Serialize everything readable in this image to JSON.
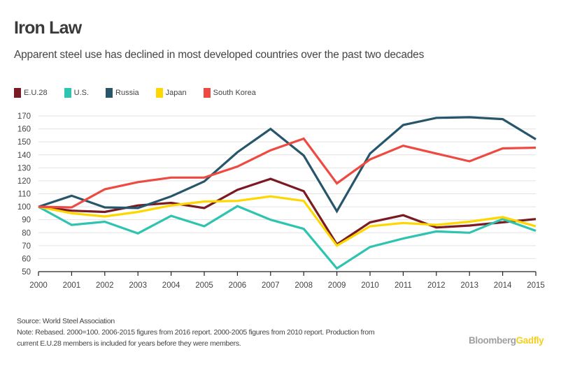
{
  "title": "Iron Law",
  "subtitle": "Apparent steel use has declined in most developed countries over the past two decades",
  "footer": {
    "source": "Source: World Steel Association",
    "note_line1": "Note: Rebased. 2000=100. 2006-2015 figures from 2016 report. 2000-2005 figures from 2010 report. Production from",
    "note_line2": "current E.U.28 members is included for years before they were members."
  },
  "brand": {
    "part1": "Bloomberg",
    "part2": "Gadfly"
  },
  "chart_data": {
    "type": "line",
    "title": "Iron Law",
    "subtitle": "Apparent steel use has declined in most developed countries over the past two decades",
    "xlabel": "",
    "ylabel": "",
    "x": [
      2000,
      2001,
      2002,
      2003,
      2004,
      2005,
      2006,
      2007,
      2008,
      2009,
      2010,
      2011,
      2012,
      2013,
      2014,
      2015
    ],
    "ylim": [
      50,
      170
    ],
    "yticks": [
      50,
      60,
      70,
      80,
      90,
      100,
      110,
      120,
      130,
      140,
      150,
      160,
      170
    ],
    "grid": true,
    "legend_position": "top-left",
    "series": [
      {
        "name": "E.U.28",
        "color": "#7a1a22",
        "values": [
          100,
          97,
          96,
          101,
          103,
          99,
          113,
          121.5,
          112,
          71,
          88,
          93.5,
          84,
          85.5,
          88,
          90.5
        ]
      },
      {
        "name": "U.S.",
        "color": "#2ec4b0",
        "values": [
          100,
          86,
          88.5,
          79.5,
          93,
          85,
          100.5,
          90,
          83,
          52.5,
          69,
          75.5,
          81,
          80,
          90.5,
          81.5
        ]
      },
      {
        "name": "Russia",
        "color": "#27566b",
        "values": [
          100,
          108.5,
          99.5,
          99,
          108,
          119.5,
          142,
          160,
          139.5,
          96.5,
          141,
          163,
          168.5,
          169,
          167.5,
          152
        ]
      },
      {
        "name": "Japan",
        "color": "#ffd700",
        "values": [
          100,
          95,
          92.5,
          96,
          101,
          104,
          104.5,
          108,
          104.5,
          70,
          85,
          87.5,
          86,
          88.5,
          92,
          85
        ]
      },
      {
        "name": "South Korea",
        "color": "#ef4a41",
        "values": [
          100,
          99.5,
          113.5,
          119,
          122.5,
          122.5,
          131,
          143.5,
          152.5,
          118,
          136.5,
          147,
          141,
          135,
          145,
          145.5
        ]
      }
    ]
  }
}
